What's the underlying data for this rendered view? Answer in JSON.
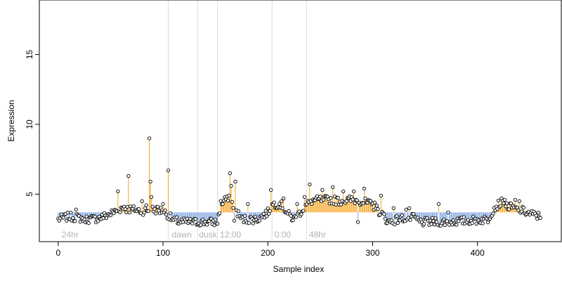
{
  "chart_data": {
    "type": "scatter",
    "xlabel": "Sample index",
    "ylabel": "Expression",
    "xlim": [
      -18,
      480
    ],
    "ylim": [
      1.6,
      18.9
    ],
    "x_ticks": [
      0,
      100,
      200,
      300,
      400
    ],
    "y_ticks": [
      5,
      10,
      15
    ],
    "baseline": 3.7,
    "colors": {
      "above": "#f5a623",
      "below": "#7fa6df",
      "point_fill": "#ffffff",
      "point_stroke": "#000000",
      "divider": "#dcdcdc",
      "region_label": "#b3b3b3"
    },
    "region_lines": [
      105,
      133,
      152,
      204,
      237
    ],
    "region_labels": [
      {
        "x": 2,
        "text": "24hr"
      },
      {
        "x": 107,
        "text": "dawn"
      },
      {
        "x": 133,
        "text": "dusk"
      },
      {
        "x": 153,
        "text": "12:00"
      },
      {
        "x": 205,
        "text": "0:00"
      },
      {
        "x": 238,
        "text": "48hr"
      }
    ],
    "anchors": [
      [
        0,
        3.2
      ],
      [
        10,
        3.4
      ],
      [
        20,
        3.3
      ],
      [
        30,
        3.2
      ],
      [
        40,
        3.3
      ],
      [
        50,
        3.6
      ],
      [
        60,
        4.0
      ],
      [
        70,
        3.9
      ],
      [
        80,
        3.8
      ],
      [
        90,
        3.9
      ],
      [
        100,
        3.8
      ],
      [
        105,
        3.5
      ],
      [
        110,
        3.1
      ],
      [
        120,
        3.0
      ],
      [
        135,
        3.0
      ],
      [
        152,
        3.0
      ],
      [
        155,
        4.3
      ],
      [
        160,
        4.6
      ],
      [
        165,
        4.5
      ],
      [
        170,
        3.8
      ],
      [
        175,
        3.2
      ],
      [
        190,
        3.2
      ],
      [
        200,
        3.7
      ],
      [
        205,
        4.3
      ],
      [
        212,
        4.3
      ],
      [
        220,
        3.5
      ],
      [
        225,
        3.2
      ],
      [
        232,
        3.8
      ],
      [
        240,
        4.5
      ],
      [
        250,
        4.6
      ],
      [
        260,
        4.6
      ],
      [
        270,
        4.5
      ],
      [
        280,
        4.6
      ],
      [
        290,
        4.5
      ],
      [
        300,
        4.2
      ],
      [
        310,
        3.5
      ],
      [
        315,
        3.0
      ],
      [
        330,
        3.3
      ],
      [
        340,
        3.3
      ],
      [
        345,
        3.0
      ],
      [
        360,
        3.0
      ],
      [
        370,
        3.0
      ],
      [
        390,
        3.1
      ],
      [
        410,
        3.2
      ],
      [
        415,
        3.9
      ],
      [
        420,
        4.3
      ],
      [
        430,
        4.1
      ],
      [
        440,
        3.9
      ],
      [
        450,
        3.6
      ],
      [
        460,
        3.4
      ]
    ],
    "spikes": [
      [
        17,
        3.9
      ],
      [
        25,
        3.2
      ],
      [
        57,
        5.2
      ],
      [
        63,
        4.1
      ],
      [
        67,
        6.3
      ],
      [
        73,
        3.8
      ],
      [
        80,
        4.5
      ],
      [
        84,
        4.2
      ],
      [
        87,
        9.0
      ],
      [
        88,
        5.9
      ],
      [
        89,
        4.8
      ],
      [
        95,
        4.1
      ],
      [
        100,
        4.3
      ],
      [
        105,
        6.7
      ],
      [
        159,
        4.8
      ],
      [
        163,
        4.9
      ],
      [
        164,
        6.5
      ],
      [
        165,
        5.6
      ],
      [
        168,
        3.1
      ],
      [
        169,
        5.9
      ],
      [
        181,
        4.3
      ],
      [
        203,
        5.3
      ],
      [
        215,
        4.7
      ],
      [
        228,
        4.3
      ],
      [
        235,
        4.8
      ],
      [
        240,
        5.7
      ],
      [
        252,
        5.3
      ],
      [
        262,
        5.5
      ],
      [
        272,
        5.2
      ],
      [
        282,
        5.2
      ],
      [
        286,
        3.0
      ],
      [
        292,
        5.4
      ],
      [
        302,
        4.4
      ],
      [
        308,
        4.9
      ],
      [
        320,
        4.0
      ],
      [
        332,
        3.9
      ],
      [
        335,
        4.0
      ],
      [
        363,
        4.3
      ],
      [
        372,
        3.7
      ],
      [
        423,
        4.7
      ],
      [
        426,
        4.6
      ],
      [
        436,
        4.6
      ],
      [
        440,
        4.5
      ]
    ]
  }
}
